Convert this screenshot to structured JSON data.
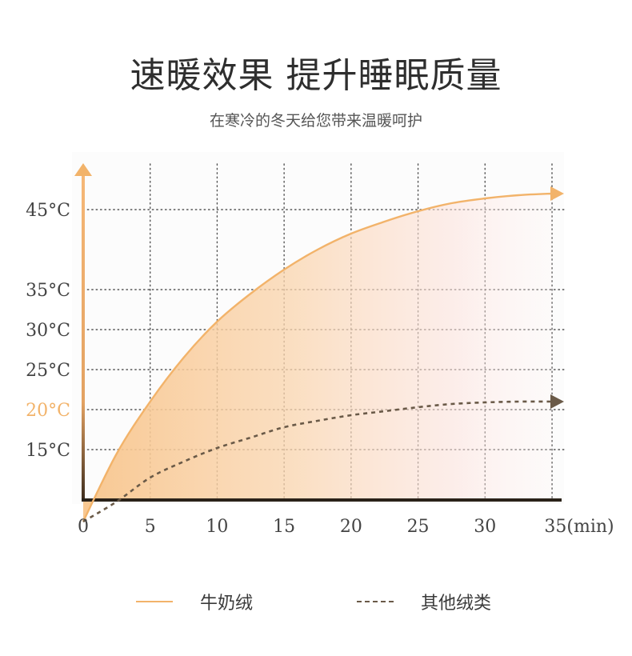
{
  "header": {
    "title": "速暖效果 提升睡眠质量",
    "subtitle": "在寒冷的冬天给您带来温暖呵护"
  },
  "colors": {
    "primary": "#f2b36a",
    "secondary": "#6a5a48",
    "axis": "#2a2219",
    "highlight": "#f2b36a"
  },
  "chart_data": {
    "type": "area",
    "grid": true,
    "legend_position": "bottom",
    "xlim": [
      0,
      35
    ],
    "x_ticks": [
      {
        "value": 0,
        "label": "0"
      },
      {
        "value": 5,
        "label": "5"
      },
      {
        "value": 10,
        "label": "10"
      },
      {
        "value": 15,
        "label": "15"
      },
      {
        "value": 20,
        "label": "20"
      },
      {
        "value": 25,
        "label": "25"
      },
      {
        "value": 30,
        "label": "30"
      },
      {
        "value": 35,
        "label": "35(min)"
      }
    ],
    "y_ticks": [
      {
        "value": 15,
        "label": "15°C"
      },
      {
        "value": 20,
        "label": "20°C",
        "highlight": true
      },
      {
        "value": 25,
        "label": "25°C"
      },
      {
        "value": 30,
        "label": "30°C"
      },
      {
        "value": 35,
        "label": "35°C"
      },
      {
        "value": 45,
        "label": "45°C"
      }
    ],
    "series": [
      {
        "name": "牛奶绒",
        "style": "solid",
        "color": "#f2b36a",
        "x": [
          0,
          2.5,
          5,
          7.5,
          10,
          12.5,
          15,
          17.5,
          20,
          22.5,
          25,
          27.5,
          30,
          32.5,
          35
        ],
        "values": [
          6,
          14.5,
          21,
          26.5,
          31,
          34.5,
          37.5,
          40,
          42,
          43.5,
          44.8,
          45.8,
          46.4,
          46.8,
          47
        ]
      },
      {
        "name": "其他绒类",
        "style": "dashed",
        "color": "#6a5a48",
        "x": [
          0,
          2.5,
          5,
          7.5,
          10,
          12.5,
          15,
          17.5,
          20,
          22.5,
          25,
          27.5,
          30,
          32.5,
          35
        ],
        "values": [
          6,
          8.5,
          11.5,
          13.5,
          15.2,
          16.5,
          17.8,
          18.6,
          19.3,
          19.8,
          20.3,
          20.7,
          20.9,
          21,
          21
        ]
      }
    ]
  },
  "legend": {
    "items": [
      {
        "label": "牛奶绒"
      },
      {
        "label": "其他绒类"
      }
    ]
  }
}
